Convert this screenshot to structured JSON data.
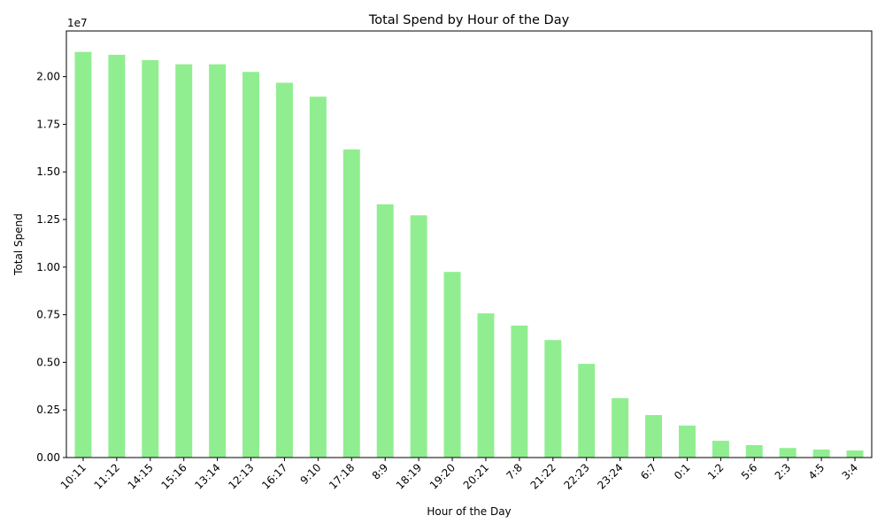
{
  "chart_data": {
    "type": "bar",
    "title": "Total Spend by Hour of the Day",
    "xlabel": "Hour of the Day",
    "ylabel": "Total Spend",
    "y_scale_label": "1e7",
    "y_scale": 10000000,
    "ylim": [
      0,
      2.24
    ],
    "yticks": [
      0.0,
      0.25,
      0.5,
      0.75,
      1.0,
      1.25,
      1.5,
      1.75,
      2.0
    ],
    "ytick_labels": [
      "0.00",
      "0.25",
      "0.50",
      "0.75",
      "1.00",
      "1.25",
      "1.50",
      "1.75",
      "2.00"
    ],
    "grid": false,
    "bar_color": "#90ee90",
    "categories": [
      "10:11",
      "11:12",
      "14:15",
      "15:16",
      "13:14",
      "12:13",
      "16:17",
      "9:10",
      "17:18",
      "8:9",
      "18:19",
      "19:20",
      "20:21",
      "7:8",
      "21:22",
      "22:23",
      "23:24",
      "6:7",
      "0:1",
      "1:2",
      "5:6",
      "2:3",
      "4:5",
      "3:4"
    ],
    "values": [
      21300000,
      21150000,
      20870000,
      20650000,
      20650000,
      20250000,
      19680000,
      18950000,
      16180000,
      13300000,
      12720000,
      9750000,
      7570000,
      6930000,
      6170000,
      4920000,
      3120000,
      2230000,
      1680000,
      880000,
      650000,
      500000,
      420000,
      370000
    ]
  }
}
